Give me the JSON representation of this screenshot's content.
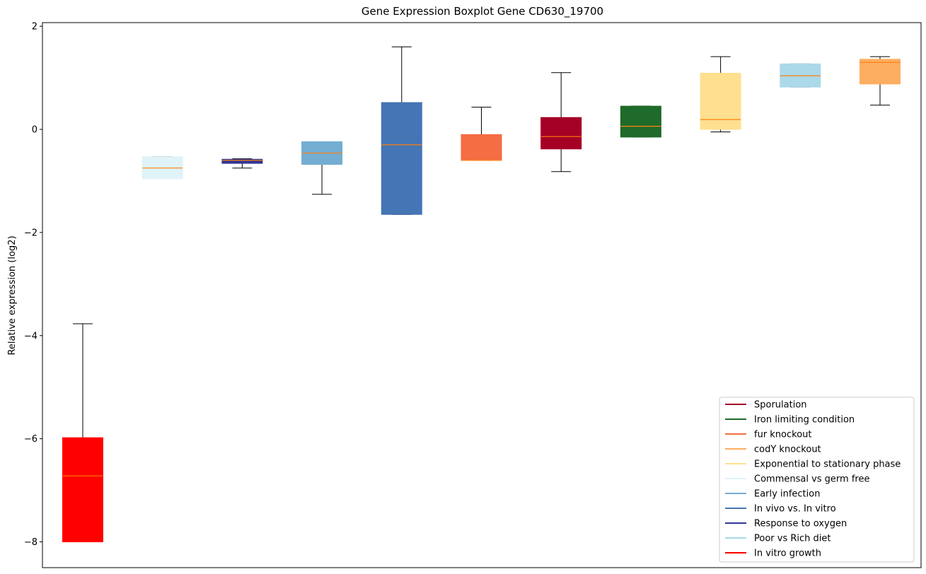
{
  "chart_data": {
    "type": "boxplot",
    "title": "Gene Expression Boxplot Gene CD630_19700",
    "xlabel": "",
    "ylabel": "Relative expression (log2)",
    "ylim": [
      -8.5,
      2.07
    ],
    "yticks": [
      2,
      0,
      -2,
      -4,
      -6,
      -8
    ],
    "ytick_labels": [
      "2",
      "0",
      "−2",
      "−4",
      "−6",
      "−8"
    ],
    "legend_position": "lower-right",
    "boxes": [
      {
        "name": "In vitro growth",
        "color": "#ff0000",
        "whisker_low": -8.0,
        "q1": -8.0,
        "median": -6.72,
        "q3": -5.98,
        "whisker_high": -3.77
      },
      {
        "name": "Commensal vs germ free",
        "color": "#e0f3f8",
        "whisker_low": -0.96,
        "q1": -0.96,
        "median": -0.75,
        "q3": -0.53,
        "whisker_high": -0.53
      },
      {
        "name": "Response to oxygen",
        "color": "#313695",
        "whisker_low": -0.75,
        "q1": -0.66,
        "median": -0.6,
        "q3": -0.58,
        "whisker_high": -0.57
      },
      {
        "name": "Early infection",
        "color": "#74add1",
        "whisker_low": -1.26,
        "q1": -0.68,
        "median": -0.46,
        "q3": -0.24,
        "whisker_high": -0.24
      },
      {
        "name": "In vivo vs. In vitro",
        "color": "#4575b4",
        "whisker_low": -1.65,
        "q1": -1.65,
        "median": -0.3,
        "q3": 0.52,
        "whisker_high": 1.6
      },
      {
        "name": "fur knockout",
        "color": "#f46d43",
        "whisker_low": -0.6,
        "q1": -0.6,
        "median": -0.6,
        "q3": -0.1,
        "whisker_high": 0.43
      },
      {
        "name": "Sporulation",
        "color": "#a50026",
        "whisker_low": -0.82,
        "q1": -0.38,
        "median": -0.14,
        "q3": 0.23,
        "whisker_high": 1.1
      },
      {
        "name": "Iron limiting condition",
        "color": "#1f6b2b",
        "whisker_low": -0.15,
        "q1": -0.15,
        "median": 0.06,
        "q3": 0.45,
        "whisker_high": 0.45
      },
      {
        "name": "Exponential to stationary phase",
        "color": "#fee090",
        "whisker_low": -0.05,
        "q1": 0.0,
        "median": 0.19,
        "q3": 1.09,
        "whisker_high": 1.41
      },
      {
        "name": "Poor vs Rich diet",
        "color": "#abd9e9",
        "whisker_low": 0.82,
        "q1": 0.82,
        "median": 1.04,
        "q3": 1.27,
        "whisker_high": 1.27
      },
      {
        "name": "codY knockout",
        "color": "#fdae61",
        "whisker_low": 0.47,
        "q1": 0.88,
        "median": 1.3,
        "q3": 1.36,
        "whisker_high": 1.41
      }
    ],
    "median_color": "#ff7f0e",
    "legend": [
      {
        "label": "Sporulation",
        "color": "#a50026"
      },
      {
        "label": "Iron limiting condition",
        "color": "#1f6b2b"
      },
      {
        "label": "fur knockout",
        "color": "#f46d43"
      },
      {
        "label": "codY knockout",
        "color": "#fdae61"
      },
      {
        "label": "Exponential to stationary phase",
        "color": "#fee090"
      },
      {
        "label": "Commensal vs germ free",
        "color": "#e0f3f8"
      },
      {
        "label": "Early infection",
        "color": "#74add1"
      },
      {
        "label": "In vivo vs. In vitro",
        "color": "#4575b4"
      },
      {
        "label": "Response to oxygen",
        "color": "#313695"
      },
      {
        "label": "Poor vs Rich diet",
        "color": "#abd9e9"
      },
      {
        "label": "In vitro growth",
        "color": "#ff0000"
      }
    ]
  }
}
